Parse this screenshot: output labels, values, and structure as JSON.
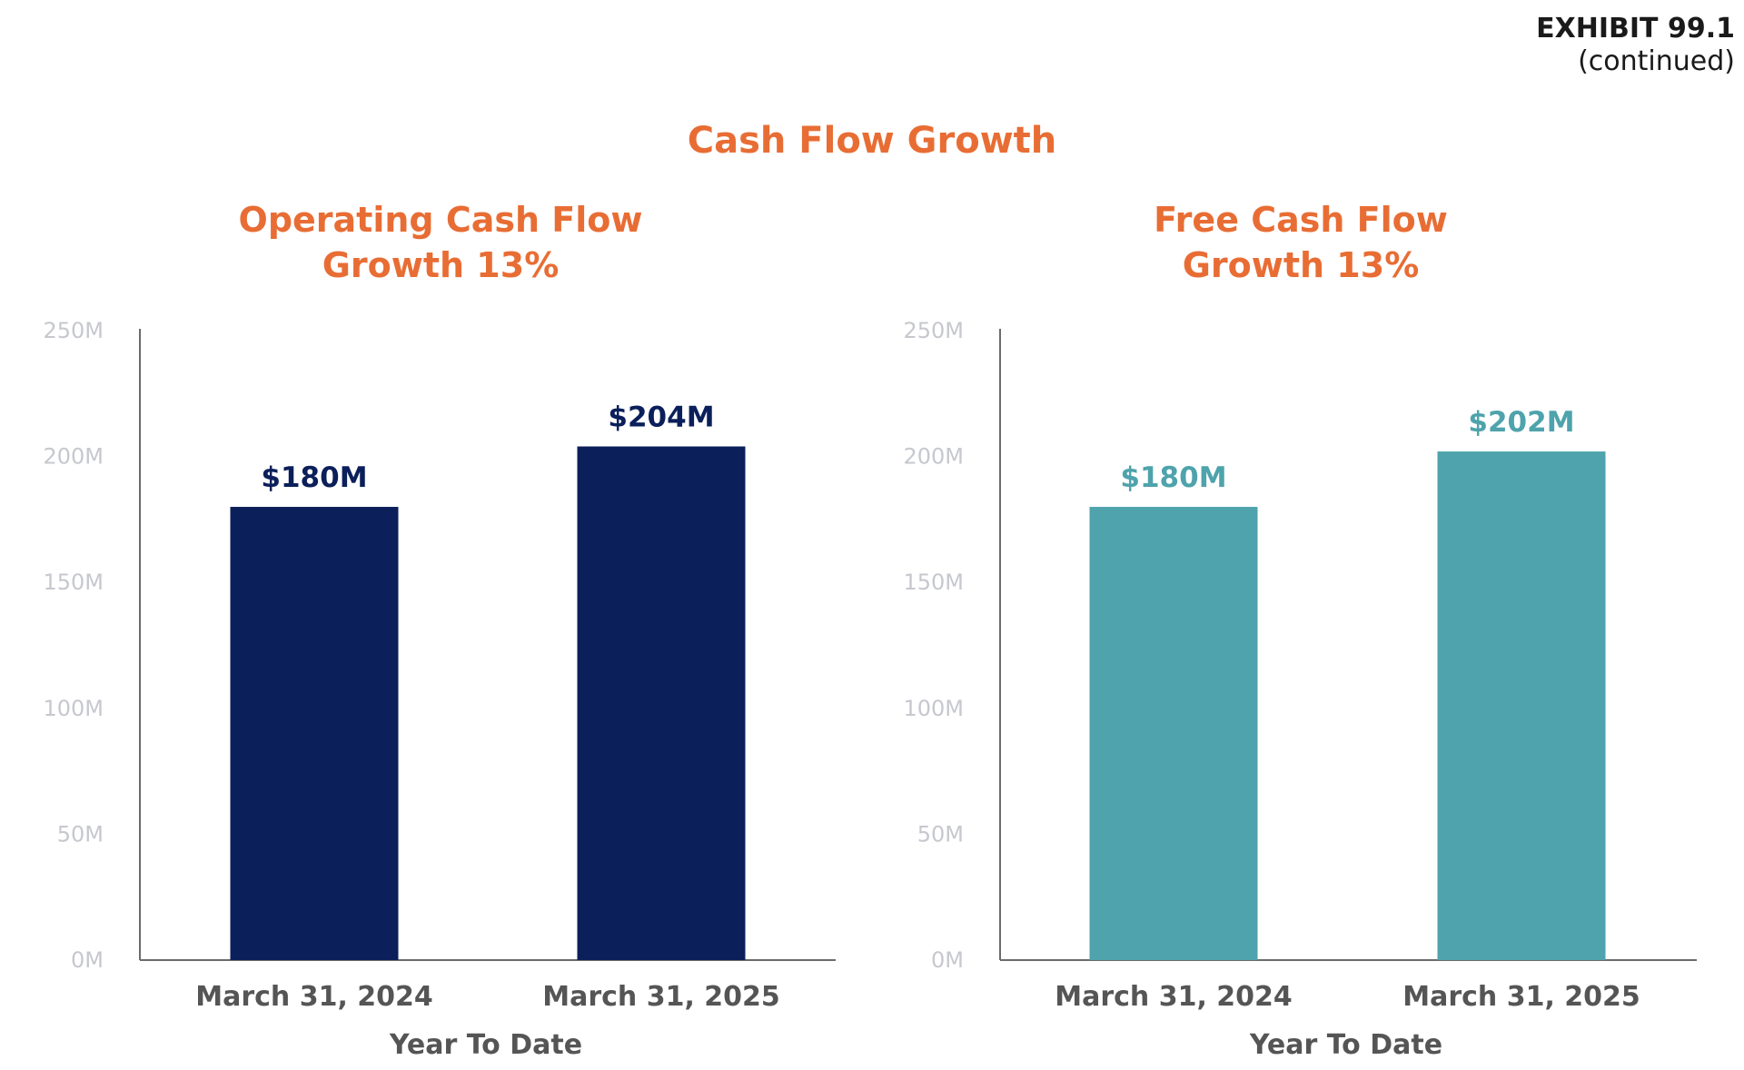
{
  "header": {
    "exhibit_label": "EXHIBIT 99.1",
    "exhibit_sub": "(continued)"
  },
  "page_title": "Cash Flow Growth",
  "colors": {
    "title": "#e86d34",
    "axis": "#6b6b6b",
    "tick_label": "#c6c8ce",
    "category_label": "#555555"
  },
  "chart_data": [
    {
      "type": "bar",
      "title": [
        "Operating Cash Flow",
        "Growth 13%"
      ],
      "categories": [
        "March 31, 2024",
        "March 31, 2025"
      ],
      "values": [
        180,
        204
      ],
      "data_labels": [
        "$180M",
        "$204M"
      ],
      "xlabel": "Year To Date",
      "ylabel": "",
      "ylim": [
        0,
        250
      ],
      "yticks": [
        0,
        50,
        100,
        150,
        200,
        250
      ],
      "ytick_labels": [
        "0M",
        "50M",
        "100M",
        "150M",
        "200M",
        "250M"
      ],
      "grid": false,
      "bar_color": "#0b1f5a",
      "label_color": "#0b1f5a"
    },
    {
      "type": "bar",
      "title": [
        "Free Cash Flow",
        "Growth 13%"
      ],
      "categories": [
        "March 31, 2024",
        "March 31, 2025"
      ],
      "values": [
        180,
        202
      ],
      "data_labels": [
        "$180M",
        "$202M"
      ],
      "xlabel": "Year To Date",
      "ylabel": "",
      "ylim": [
        0,
        250
      ],
      "yticks": [
        0,
        50,
        100,
        150,
        200,
        250
      ],
      "ytick_labels": [
        "0M",
        "50M",
        "100M",
        "150M",
        "200M",
        "250M"
      ],
      "grid": false,
      "bar_color": "#4ea3ac",
      "label_color": "#4ea3ac"
    }
  ]
}
